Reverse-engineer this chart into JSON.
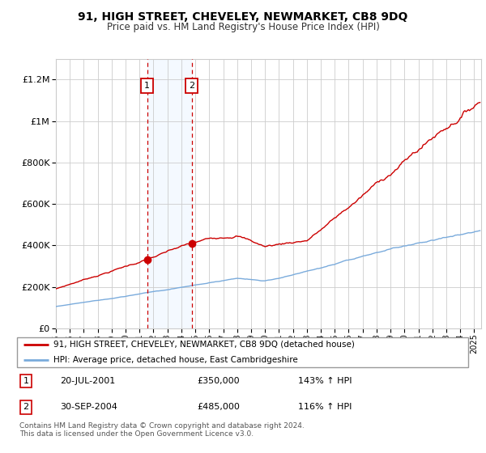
{
  "title": "91, HIGH STREET, CHEVELEY, NEWMARKET, CB8 9DQ",
  "subtitle": "Price paid vs. HM Land Registry's House Price Index (HPI)",
  "legend_line1": "91, HIGH STREET, CHEVELEY, NEWMARKET, CB8 9DQ (detached house)",
  "legend_line2": "HPI: Average price, detached house, East Cambridgeshire",
  "footer": "Contains HM Land Registry data © Crown copyright and database right 2024.\nThis data is licensed under the Open Government Licence v3.0.",
  "sale1_date": "20-JUL-2001",
  "sale1_price": 350000,
  "sale1_label": "£350,000",
  "sale1_hpi": "143% ↑ HPI",
  "sale2_date": "30-SEP-2004",
  "sale2_price": 485000,
  "sale2_label": "£485,000",
  "sale2_hpi": "116% ↑ HPI",
  "sale1_x": 2001.55,
  "sale2_x": 2004.75,
  "red_color": "#cc0000",
  "blue_color": "#7aabdc",
  "shade_color": "#ddeeff",
  "grid_color": "#cccccc",
  "ylim": [
    0,
    1300000
  ],
  "xlim_start": 1995,
  "xlim_end": 2025.5,
  "yticks": [
    0,
    200000,
    400000,
    600000,
    800000,
    1000000,
    1200000
  ],
  "ytick_labels": [
    "£0",
    "£200K",
    "£400K",
    "£600K",
    "£800K",
    "£1M",
    "£1.2M"
  ]
}
